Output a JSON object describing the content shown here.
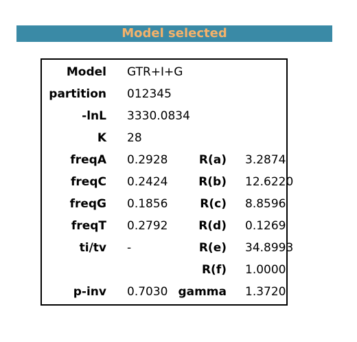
{
  "header": {
    "title": "Model selected"
  },
  "rows": {
    "model": {
      "label": "Model",
      "value": "GTR+I+G"
    },
    "partition": {
      "label": "partition",
      "value": "012345"
    },
    "lnl": {
      "label": "-lnL",
      "value": "3330.0834"
    },
    "k": {
      "label": "K",
      "value": "28"
    },
    "freqA": {
      "label": "freqA",
      "value": "0.2928"
    },
    "freqC": {
      "label": "freqC",
      "value": "0.2424"
    },
    "freqG": {
      "label": "freqG",
      "value": "0.1856"
    },
    "freqT": {
      "label": "freqT",
      "value": "0.2792"
    },
    "titv": {
      "label": "ti/tv",
      "value": "-"
    },
    "pinv": {
      "label": "p-inv",
      "value": "0.7030"
    }
  },
  "rates": {
    "ra": {
      "label": "R(a)",
      "value": "3.2874"
    },
    "rb": {
      "label": "R(b)",
      "value": "12.6220"
    },
    "rc": {
      "label": "R(c)",
      "value": "8.8596"
    },
    "rd": {
      "label": "R(d)",
      "value": "0.1269"
    },
    "re": {
      "label": "R(e)",
      "value": "34.8993"
    },
    "rf": {
      "label": "R(f)",
      "value": "1.0000"
    },
    "gamma": {
      "label": "gamma",
      "value": "1.3720"
    }
  },
  "colors": {
    "banner_background": "#3a8aa6",
    "banner_text": "#f5b26a"
  }
}
